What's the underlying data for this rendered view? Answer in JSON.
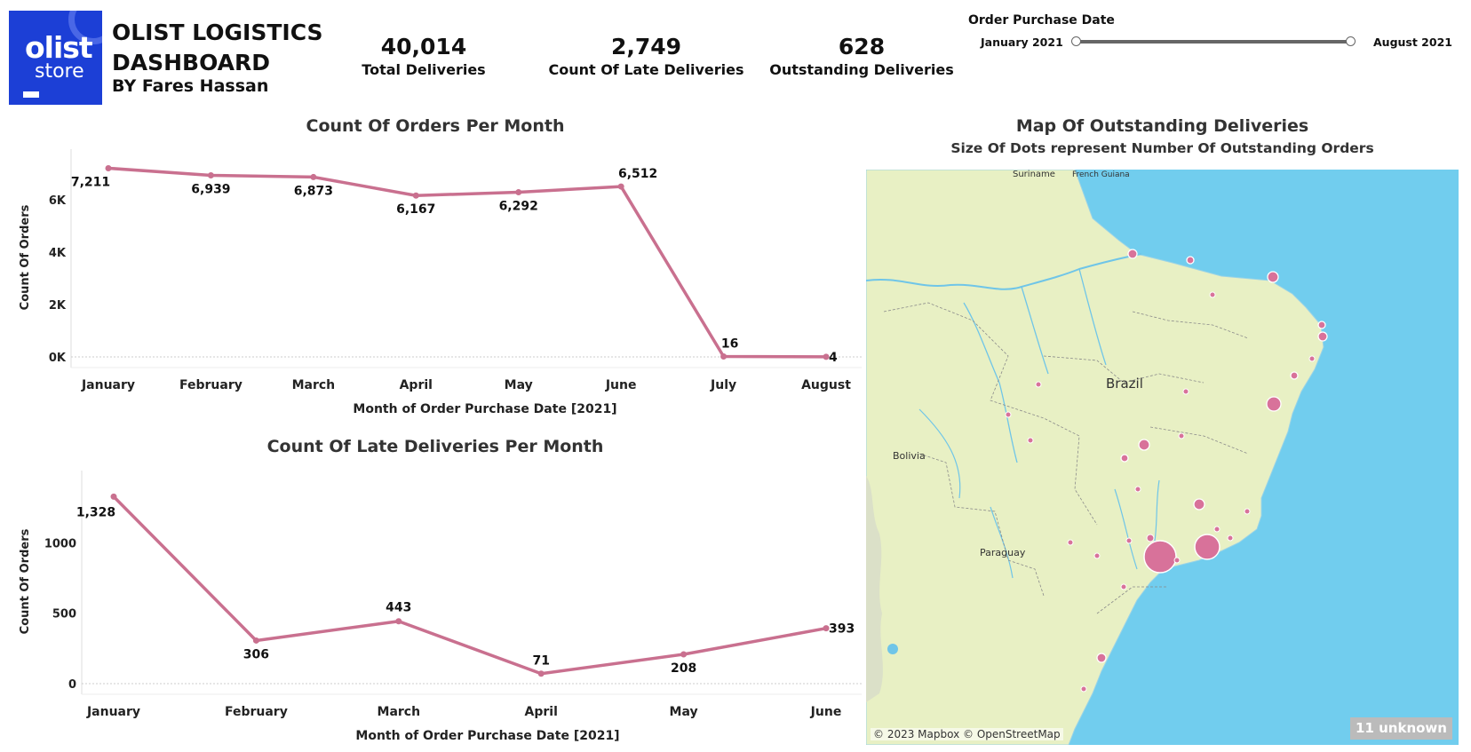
{
  "logo": {
    "line1": "olist",
    "line2": "store"
  },
  "header": {
    "title_line1": "OLIST LOGISTICS",
    "title_line2": "DASHBOARD",
    "byline": "BY Fares Hassan"
  },
  "kpis": [
    {
      "value": "40,014",
      "label": "Total Deliveries"
    },
    {
      "value": "2,749",
      "label": "Count Of Late Deliveries"
    },
    {
      "value": "628",
      "label": "Outstanding Deliveries"
    }
  ],
  "filter": {
    "label": "Order Purchase Date",
    "start": "January 2021",
    "end": "August 2021",
    "selected_range_fraction": [
      0,
      1
    ]
  },
  "colors": {
    "accent": "#c9708f",
    "logo": "#1c3fd6",
    "water": "#71cdee",
    "land": "#e8f0c4"
  },
  "chart_data": [
    {
      "type": "line",
      "title": "Count Of Orders Per Month",
      "xlabel": "Month of Order Purchase Date [2021]",
      "ylabel": "Count Of Orders",
      "categories": [
        "January",
        "February",
        "March",
        "April",
        "May",
        "June",
        "July",
        "August"
      ],
      "values": [
        7211,
        6939,
        6873,
        6167,
        6292,
        6512,
        16,
        4
      ],
      "labels": [
        "7,211",
        "6,939",
        "6,873",
        "6,167",
        "6,292",
        "6,512",
        "16",
        "4"
      ],
      "yticks": [
        0,
        2000,
        4000,
        6000
      ],
      "ytick_labels": [
        "0K",
        "2K",
        "4K",
        "6K"
      ],
      "ylim": [
        0,
        7600
      ]
    },
    {
      "type": "line",
      "title": "Count Of Late Deliveries Per Month",
      "xlabel": "Month of Order Purchase Date [2021]",
      "ylabel": "Count Of Orders",
      "categories": [
        "January",
        "February",
        "March",
        "April",
        "May",
        "June"
      ],
      "values": [
        1328,
        306,
        443,
        71,
        208,
        393
      ],
      "labels": [
        "1,328",
        "306",
        "443",
        "71",
        "208",
        "393"
      ],
      "yticks": [
        0,
        500,
        1000
      ],
      "ytick_labels": [
        "0",
        "500",
        "1000"
      ],
      "ylim": [
        0,
        1450
      ]
    }
  ],
  "map": {
    "title": "Map Of Outstanding Deliveries",
    "subtitle": "Size Of Dots represent Number Of  Outstanding Orders",
    "place_labels": [
      "Brazil",
      "Bolivia",
      "Paraguay",
      "Suriname",
      "French Guiana"
    ],
    "credit": "© 2023 Mapbox © OpenStreetMap",
    "unknown_badge": "11 unknown"
  }
}
